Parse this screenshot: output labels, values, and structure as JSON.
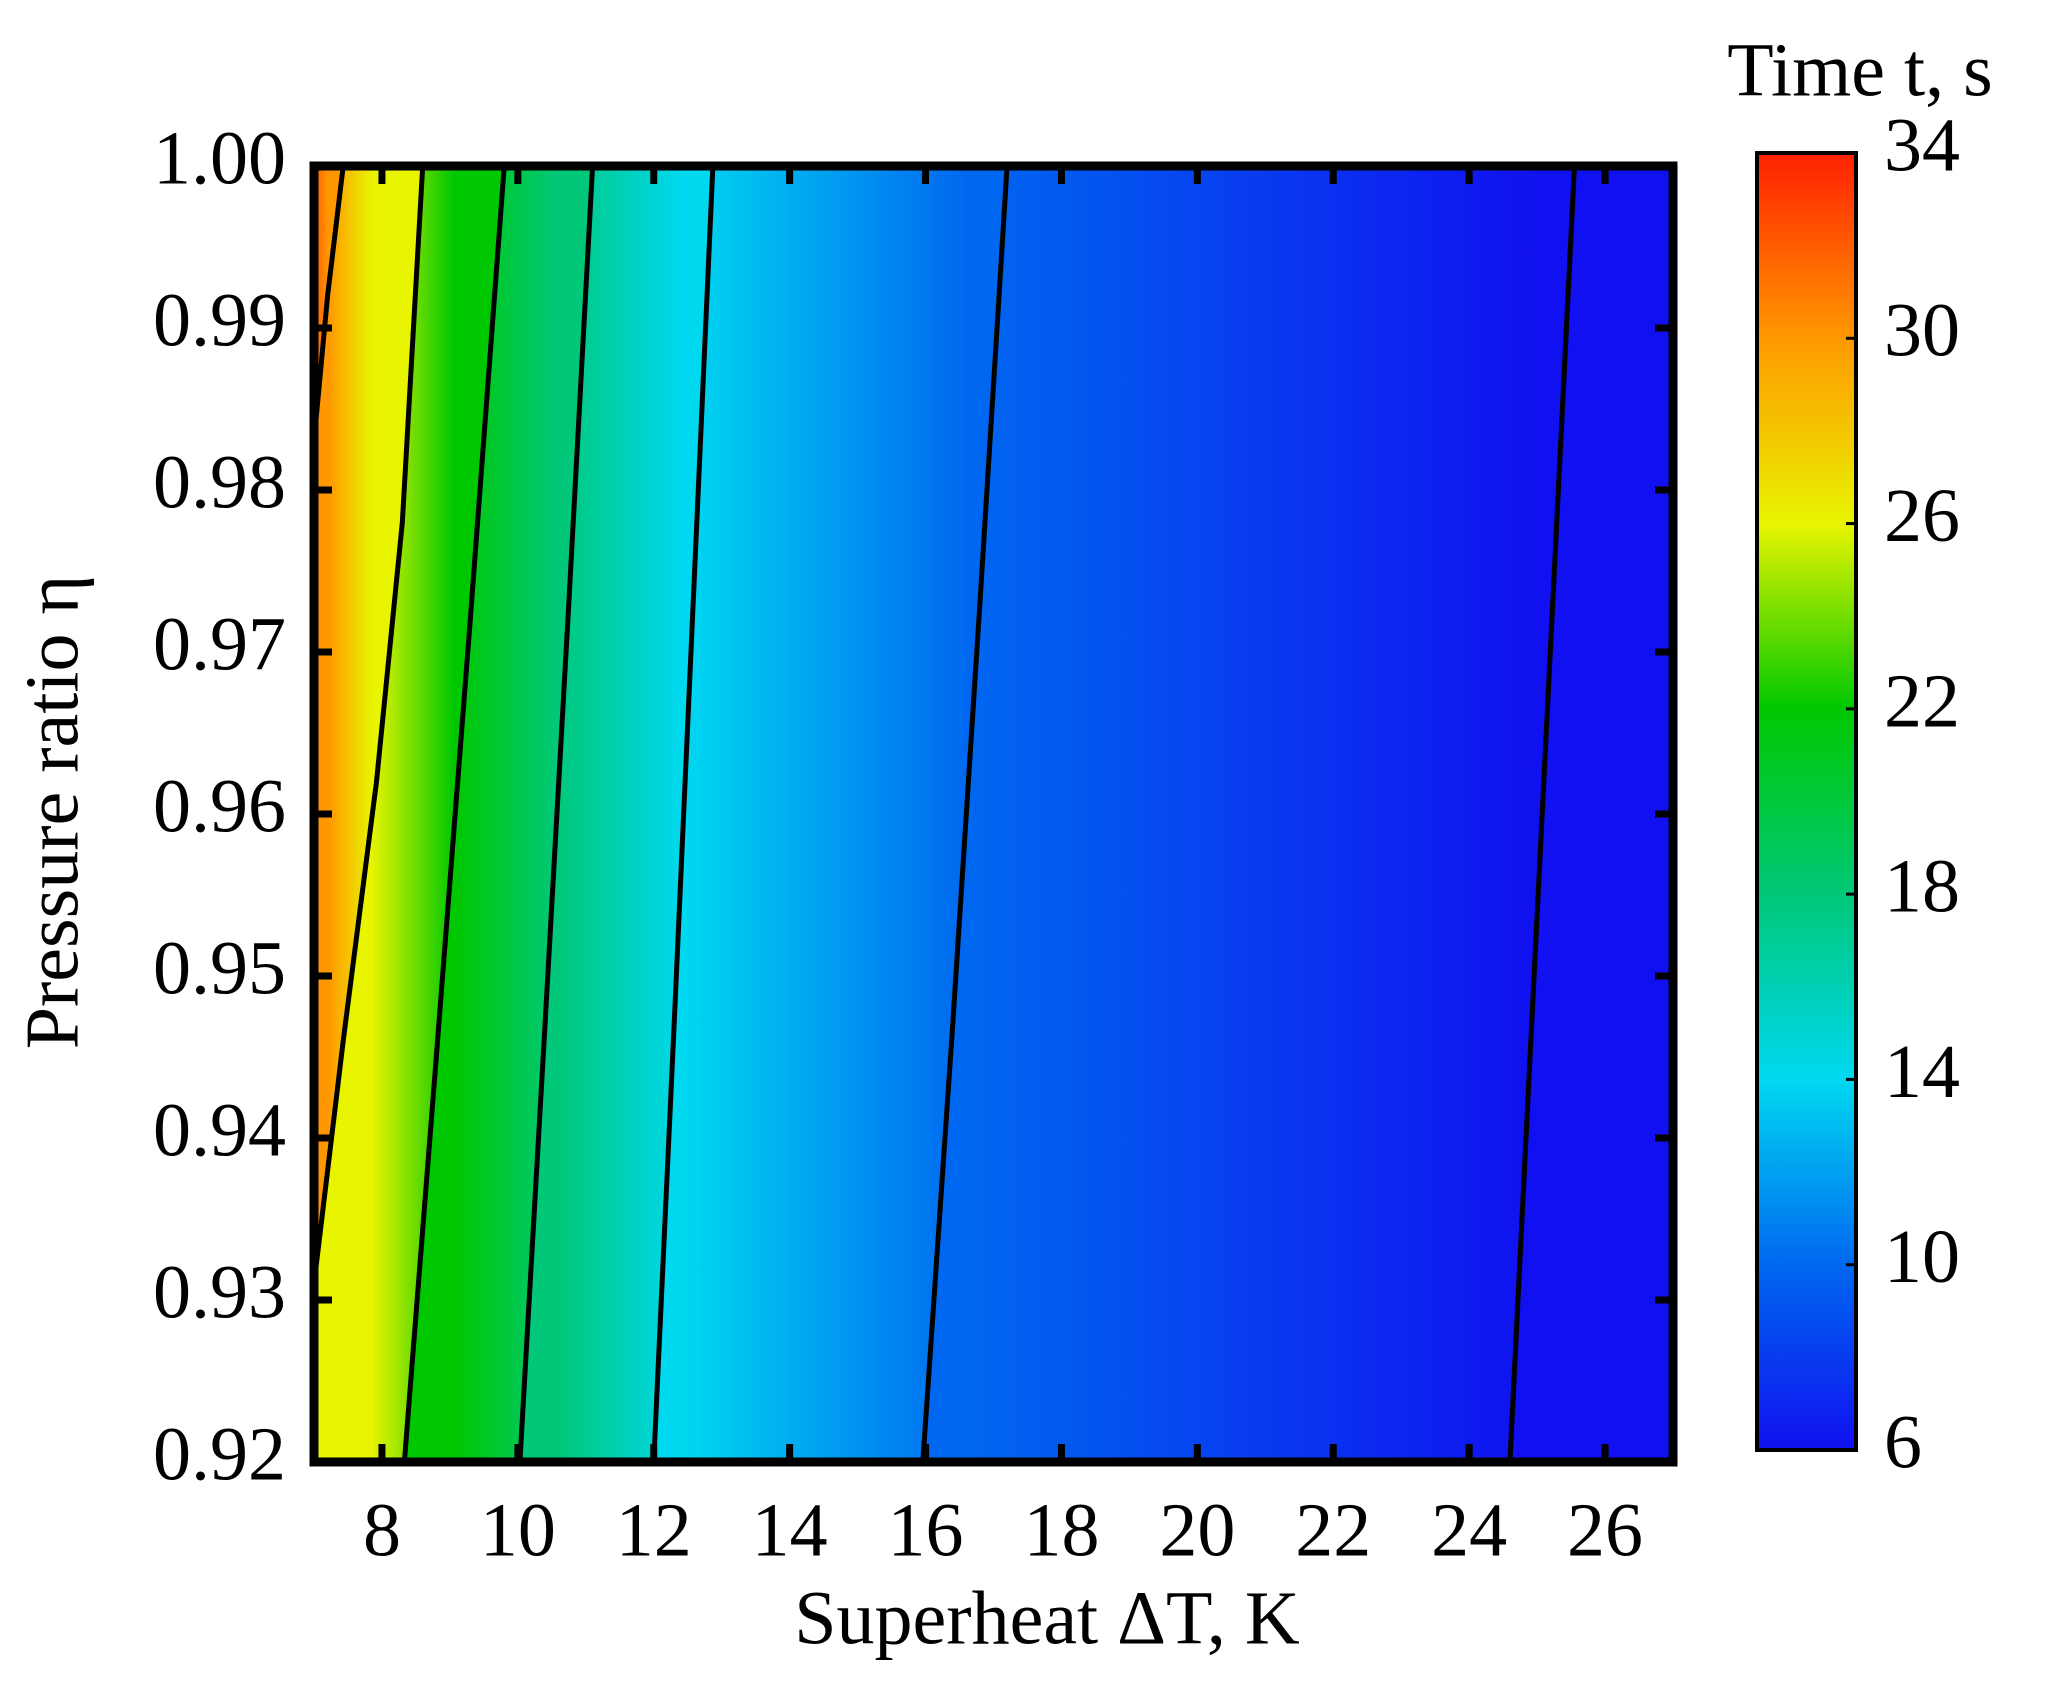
{
  "chart_data": {
    "type": "contour",
    "xlabel": "Superheat ΔT, K",
    "ylabel": "Pressure ratio η",
    "colorbar_label": "Time t, s",
    "xlim": [
      7,
      27
    ],
    "ylim": [
      0.92,
      1.0
    ],
    "xticks": [
      8,
      10,
      12,
      14,
      16,
      18,
      20,
      22,
      24,
      26
    ],
    "yticks": [
      0.92,
      0.93,
      0.94,
      0.95,
      0.96,
      0.97,
      0.98,
      0.99,
      {
        "value": 1.0,
        "label": "1.00"
      }
    ],
    "clim": [
      6,
      34
    ],
    "cticks": [
      6,
      10,
      14,
      18,
      22,
      26,
      30,
      34
    ],
    "colormap": [
      "#1010f0",
      "#0068f0",
      "#00d8f0",
      "#00c878",
      "#00c800",
      "#e8f400",
      "#ff9800",
      "#ff2000"
    ],
    "line_color": "#000000",
    "contours": [
      {
        "level": 30,
        "x": [
          7.0,
          7.2,
          7.43
        ],
        "y": [
          0.983,
          0.992,
          1.0
        ]
      },
      {
        "level": 26,
        "x": [
          7.0,
          7.43,
          7.92,
          8.3,
          8.6
        ],
        "y": [
          0.931,
          0.946,
          0.962,
          0.978,
          1.0
        ]
      },
      {
        "level": 22,
        "x": [
          8.33,
          8.8,
          9.3,
          9.8
        ],
        "y": [
          0.92,
          0.945,
          0.972,
          1.0
        ]
      },
      {
        "level": 18,
        "x": [
          10.03,
          10.4,
          10.75,
          11.1
        ],
        "y": [
          0.92,
          0.947,
          0.973,
          1.0
        ]
      },
      {
        "level": 14,
        "x": [
          12.0,
          12.3,
          12.58,
          12.87
        ],
        "y": [
          0.92,
          0.947,
          0.973,
          1.0
        ]
      },
      {
        "level": 10,
        "x": [
          15.96,
          16.4,
          16.8,
          17.2
        ],
        "y": [
          0.92,
          0.947,
          0.973,
          1.0
        ]
      },
      {
        "level": 6,
        "x": [
          24.6,
          24.92,
          25.23,
          25.55
        ],
        "y": [
          0.92,
          0.947,
          0.973,
          1.0
        ]
      }
    ]
  }
}
